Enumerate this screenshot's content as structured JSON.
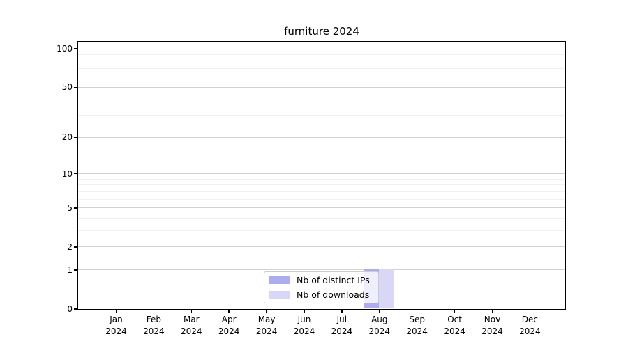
{
  "figure": {
    "background": "#ffffff"
  },
  "chart_data": {
    "type": "bar",
    "title": "furniture 2024",
    "categories": [
      "Jan 2024",
      "Feb 2024",
      "Mar 2024",
      "Apr 2024",
      "May 2024",
      "Jun 2024",
      "Jul 2024",
      "Aug 2024",
      "Sep 2024",
      "Oct 2024",
      "Nov 2024",
      "Dec 2024"
    ],
    "series": [
      {
        "name": "Nb of distinct IPs",
        "color": "#acacee",
        "values": [
          0,
          0,
          0,
          0,
          0,
          0,
          0,
          1,
          0,
          0,
          0,
          0
        ]
      },
      {
        "name": "Nb of downloads",
        "color": "#d8d8f6",
        "values": [
          0,
          0,
          0,
          0,
          0,
          0,
          0,
          1,
          0,
          0,
          0,
          0
        ]
      }
    ],
    "xlabel": "",
    "ylabel": "",
    "yscale": "log1p",
    "ylim": [
      0,
      113.3
    ],
    "yticks": [
      0,
      1,
      2,
      5,
      10,
      20,
      50,
      100
    ],
    "y_minor_gridlines": [
      3,
      4,
      6,
      7,
      8,
      9,
      30,
      40,
      60,
      70,
      80,
      90
    ],
    "grid": true,
    "legend_position": "lower center",
    "colors": {
      "grid_major": "#d2d2d2",
      "grid_minor": "#f0f0f0",
      "spine": "#000000",
      "text": "#000000",
      "legend_border": "#cccccc",
      "legend_bg": "rgba(255,255,255,0.8)"
    }
  }
}
